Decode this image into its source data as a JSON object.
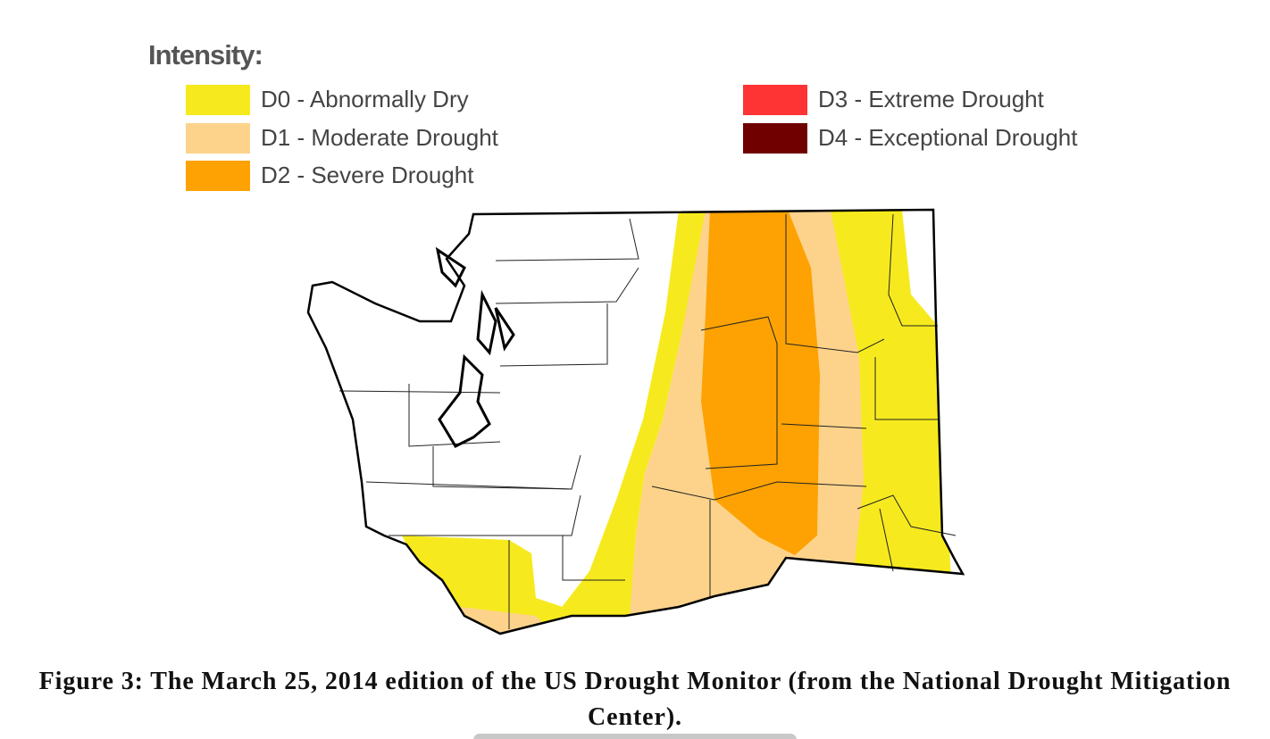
{
  "legend": {
    "title": "Intensity:",
    "items": [
      {
        "label": "D0 - Abnormally Dry",
        "color": "#f6ea1e"
      },
      {
        "label": "D1 - Moderate Drought",
        "color": "#fdd38b"
      },
      {
        "label": "D2 - Severe Drought",
        "color": "#fda202"
      },
      {
        "label": "D3 - Extreme Drought",
        "color": "#fe3334"
      },
      {
        "label": "D4 - Exceptional Drought",
        "color": "#700000"
      }
    ]
  },
  "caption": "Figure 3: The March 25, 2014 edition of the US Drought Monitor (from the National Drought Mitigation Center)."
}
